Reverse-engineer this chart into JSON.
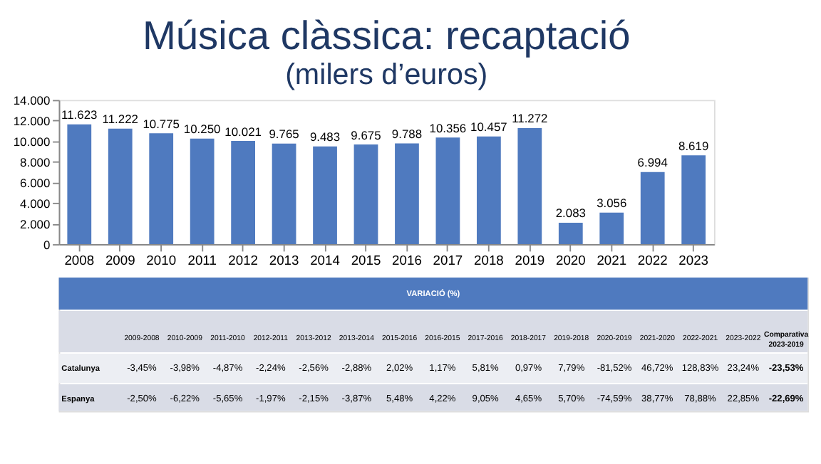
{
  "chart_data": {
    "type": "bar",
    "title": "Música clàssica: recaptació",
    "subtitle": "(milers d’euros)",
    "categories": [
      "2008",
      "2009",
      "2010",
      "2011",
      "2012",
      "2013",
      "2014",
      "2015",
      "2016",
      "2017",
      "2018",
      "2019",
      "2020",
      "2021",
      "2022",
      "2023"
    ],
    "values": [
      11623,
      11222,
      10775,
      10250,
      10021,
      9765,
      9483,
      9675,
      9788,
      10356,
      10457,
      11272,
      2083,
      3056,
      6994,
      8619
    ],
    "value_labels": [
      "11.623",
      "11.222",
      "10.775",
      "10.250",
      "10.021",
      "9.765",
      "9.483",
      "9.675",
      "9.788",
      "10.356",
      "10.457",
      "11.272",
      "2.083",
      "3.056",
      "6.994",
      "8.619"
    ],
    "color": "#4f7abf",
    "ylim": [
      0,
      14000
    ],
    "yticks": [
      0,
      {
        "value": 2000,
        "label": "2.000"
      },
      {
        "value": 4000,
        "label": "4.000"
      },
      {
        "value": 6000,
        "label": "6.000"
      },
      {
        "value": 8000,
        "label": "8.000"
      },
      {
        "value": 10000,
        "label": "10.000"
      },
      {
        "value": 12000,
        "label": "12.000"
      },
      {
        "value": 14000,
        "label": "14.000"
      }
    ],
    "grid": false,
    "annotations": [
      "VARIACIÓ (%)",
      "2009-2008",
      "2010-2009",
      "2011-2010",
      "2012-2011",
      "2013-2012",
      "2013-2014",
      "2015-2016",
      "2016-2015",
      "2017-2016",
      "2018-2017",
      "2019-2018",
      "2020-2019",
      "2021-2020",
      "2022-2021",
      "2023-2022",
      "Comparativa 2023-2019",
      "Catalunya",
      "-3,45%",
      "-3,98%",
      "-4,87%",
      "-2,24%",
      "-2,56%",
      "-2,88%",
      "2,02%",
      "1,17%",
      "5,81%",
      "0,97%",
      "7,79%",
      "-81,52%",
      "46,72%",
      "128,83%",
      "23,24%",
      "-23,53%",
      "Espanya",
      "-2,50%",
      "-6,22%",
      "-5,65%",
      "-1,97%",
      "-2,15%",
      "-3,87%",
      "5,48%",
      "4,22%",
      "9,05%",
      "4,65%",
      "5,70%",
      "-74,59%",
      "38,77%",
      "78,88%",
      "22,85%",
      "-22,69%"
    ]
  }
}
